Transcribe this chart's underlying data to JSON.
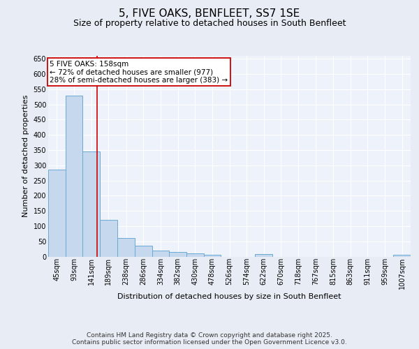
{
  "title": "5, FIVE OAKS, BENFLEET, SS7 1SE",
  "subtitle": "Size of property relative to detached houses in South Benfleet",
  "xlabel": "Distribution of detached houses by size in South Benfleet",
  "ylabel": "Number of detached properties",
  "bar_color": "#c5d8ee",
  "bar_edge_color": "#6aaad4",
  "background_color": "#e8ecf5",
  "plot_background": "#eef2fb",
  "grid_color": "#ffffff",
  "bin_centers": [
    45,
    93,
    141,
    189,
    238,
    286,
    334,
    382,
    430,
    478,
    526,
    574,
    622,
    670,
    718,
    767,
    815,
    863,
    911,
    959,
    1007
  ],
  "values": [
    285,
    530,
    345,
    120,
    60,
    35,
    20,
    15,
    10,
    5,
    0,
    0,
    8,
    0,
    0,
    0,
    0,
    0,
    0,
    0,
    5
  ],
  "property_size": 158,
  "annotation_text": "5 FIVE OAKS: 158sqm\n← 72% of detached houses are smaller (977)\n28% of semi-detached houses are larger (383) →",
  "vline_color": "#cc0000",
  "box_edge_color": "#cc0000",
  "ylim": [
    0,
    660
  ],
  "yticks": [
    0,
    50,
    100,
    150,
    200,
    250,
    300,
    350,
    400,
    450,
    500,
    550,
    600,
    650
  ],
  "footer": "Contains HM Land Registry data © Crown copyright and database right 2025.\nContains public sector information licensed under the Open Government Licence v3.0.",
  "title_fontsize": 11,
  "subtitle_fontsize": 9,
  "label_fontsize": 8,
  "tick_fontsize": 7,
  "annot_fontsize": 7.5,
  "footer_fontsize": 6.5
}
